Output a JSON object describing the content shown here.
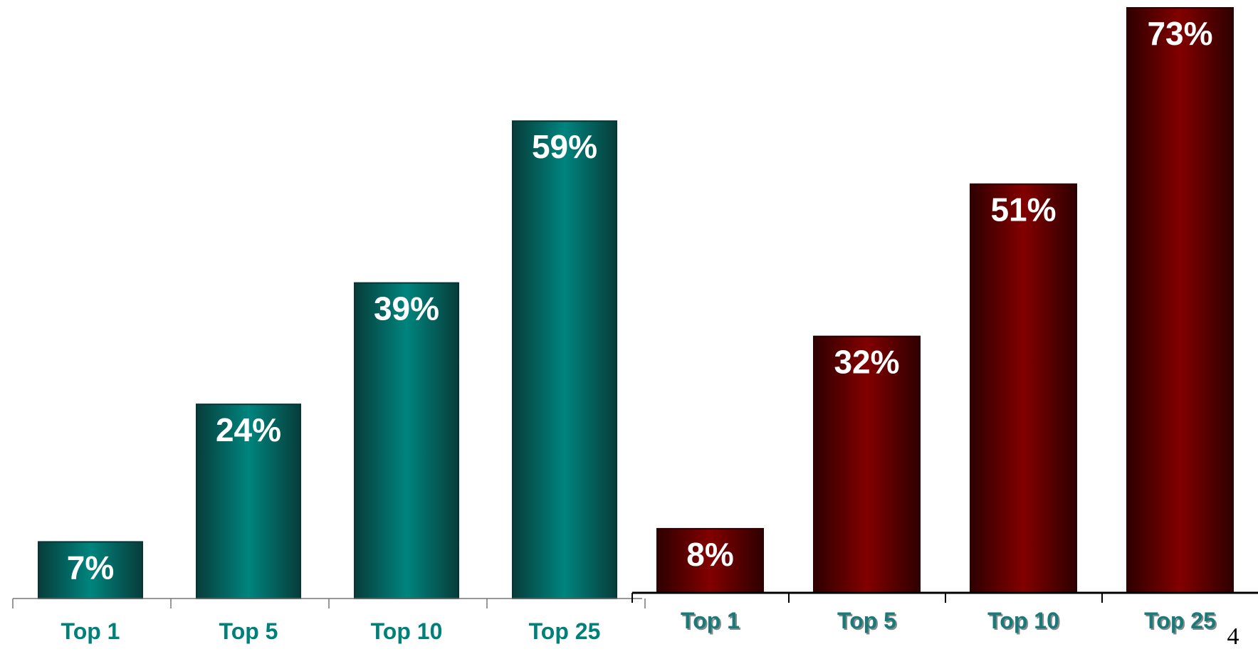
{
  "chart_data": [
    {
      "type": "bar",
      "categories": [
        "Top 1",
        "Top 5",
        "Top 10",
        "Top 25"
      ],
      "values": [
        7,
        24,
        39,
        59
      ],
      "value_labels": [
        "7%",
        "24%",
        "39%",
        "59%"
      ],
      "ylim": [
        0,
        73
      ],
      "grid": false,
      "colors": {
        "bar": "#00807a",
        "bar_edge": "#063633",
        "value_label": "#ffffff",
        "tick_label": "#00807a"
      }
    },
    {
      "type": "bar",
      "categories": [
        "Top 1",
        "Top 5",
        "Top 10",
        "Top 25"
      ],
      "values": [
        8,
        32,
        51,
        73
      ],
      "value_labels": [
        "8%",
        "32%",
        "51%",
        "73%"
      ],
      "ylim": [
        0,
        73
      ],
      "grid": false,
      "colors": {
        "bar": "#7d0000",
        "bar_edge": "#2a0000",
        "value_label": "#ffffff",
        "tick_label": "#1a7a7a"
      }
    }
  ],
  "page": {
    "number": "4"
  }
}
